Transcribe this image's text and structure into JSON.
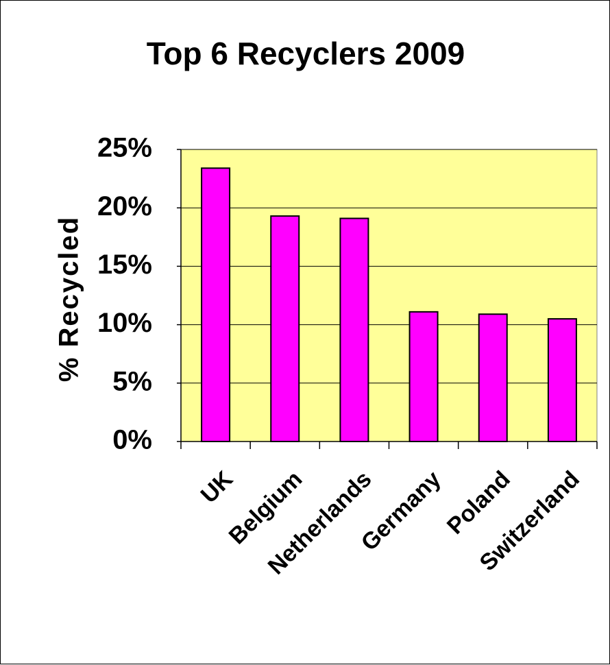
{
  "chart_data": {
    "type": "bar",
    "title": "Top 6 Recyclers 2009",
    "xlabel": "",
    "ylabel": "% Recycled",
    "categories": [
      "UK",
      "Belgium",
      "Netherlands",
      "Germany",
      "Poland",
      "Switzerland"
    ],
    "values": [
      23.4,
      19.3,
      19.1,
      11.1,
      10.9,
      10.5
    ],
    "value_format": "percent",
    "ylim": [
      0,
      25
    ],
    "yticks": [
      0,
      5,
      10,
      15,
      20,
      25
    ],
    "ytick_labels": [
      "0%",
      "5%",
      "10%",
      "15%",
      "20%",
      "25%"
    ],
    "grid": true,
    "legend": "none",
    "colors": {
      "bar_fill": "#FF00FF",
      "bar_stroke": "#000000",
      "plot_background": "#FFFF99",
      "gridline": "#000000",
      "page_background": "#FFFFFF"
    }
  }
}
